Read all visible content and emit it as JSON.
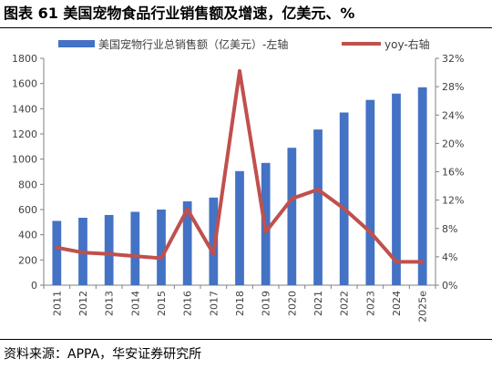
{
  "figure": {
    "title": "图表 61  美国宠物食品行业销售额及增速，亿美元、%",
    "source": "资料来源：APPA，华安证券研究所"
  },
  "chart_data": {
    "type": "bar",
    "categories": [
      "2011",
      "2012",
      "2013",
      "2014",
      "2015",
      "2016",
      "2017",
      "2018",
      "2019",
      "2020",
      "2021",
      "2022",
      "2023",
      "2024",
      "2025e"
    ],
    "series": [
      {
        "name": "美国宠物行业总销售额（亿美元）-左轴",
        "type": "bar",
        "axis": "left",
        "color": "#4472C4",
        "values": [
          510,
          535,
          557,
          582,
          600,
          665,
          695,
          905,
          970,
          1090,
          1235,
          1370,
          1470,
          1520,
          1570
        ]
      },
      {
        "name": "yoy-右轴",
        "type": "line",
        "axis": "right",
        "color": "#C0504D",
        "values": [
          5.3,
          4.6,
          4.4,
          4.1,
          3.8,
          10.7,
          4.4,
          30.2,
          7.5,
          12.2,
          13.5,
          10.8,
          7.5,
          3.3,
          3.3
        ]
      }
    ],
    "y_left": {
      "min": 0,
      "max": 1800,
      "ticks": [
        0,
        200,
        400,
        600,
        800,
        1000,
        1200,
        1400,
        1600,
        1800
      ]
    },
    "y_right": {
      "min": 0,
      "max": 32,
      "ticks": [
        "0%",
        "4%",
        "8%",
        "12%",
        "16%",
        "20%",
        "24%",
        "28%",
        "32%"
      ]
    },
    "legend_position": "top",
    "grid": false
  }
}
